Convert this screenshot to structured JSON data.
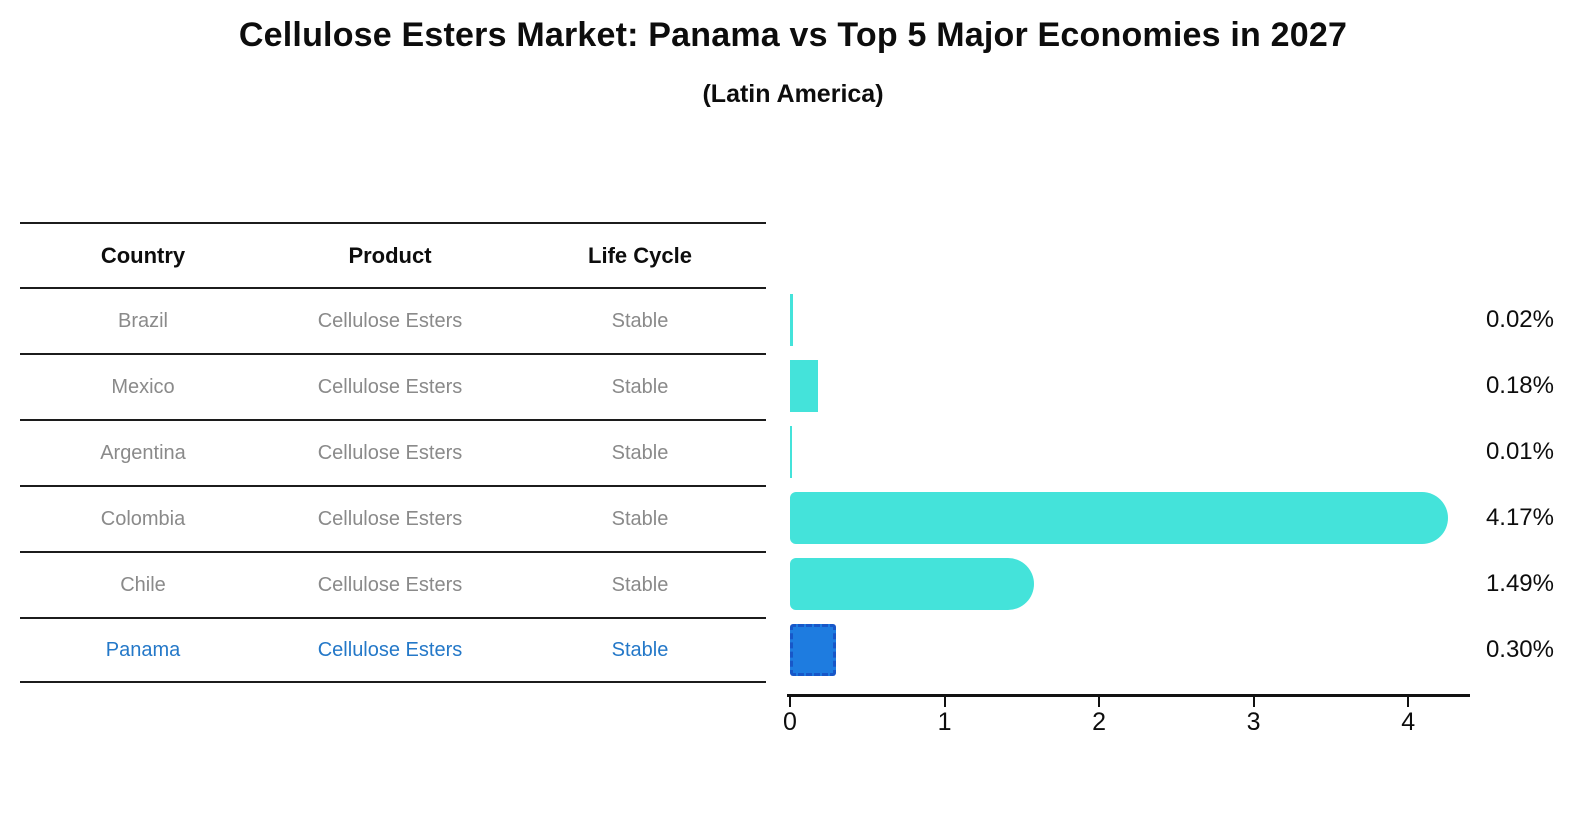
{
  "header": {
    "title": "Cellulose Esters Market: Panama vs Top 5 Major Economies in 2027",
    "subtitle": "(Latin America)"
  },
  "table": {
    "headers": [
      "Country",
      "Product",
      "Life Cycle"
    ],
    "rows": [
      {
        "country": "Brazil",
        "product": "Cellulose Esters",
        "life_cycle": "Stable",
        "highlight": false
      },
      {
        "country": "Mexico",
        "product": "Cellulose Esters",
        "life_cycle": "Stable",
        "highlight": false
      },
      {
        "country": "Argentina",
        "product": "Cellulose Esters",
        "life_cycle": "Stable",
        "highlight": false
      },
      {
        "country": "Colombia",
        "product": "Cellulose Esters",
        "life_cycle": "Stable",
        "highlight": false
      },
      {
        "country": "Chile",
        "product": "Cellulose Esters",
        "life_cycle": "Stable",
        "highlight": false
      },
      {
        "country": "Panama",
        "product": "Cellulose Esters",
        "life_cycle": "Stable",
        "highlight": true
      }
    ]
  },
  "chart_data": {
    "type": "bar",
    "orientation": "horizontal",
    "title": "Cellulose Esters Market: Panama vs Top 5 Major Economies in 2027",
    "subtitle": "(Latin America)",
    "categories": [
      "Brazil",
      "Mexico",
      "Argentina",
      "Colombia",
      "Chile",
      "Panama"
    ],
    "values": [
      0.02,
      0.18,
      0.01,
      4.17,
      1.49,
      0.3
    ],
    "value_labels": [
      "0.02%",
      "0.18%",
      "0.01%",
      "4.17%",
      "1.49%",
      "0.30%"
    ],
    "xlabel": "",
    "ylabel": "",
    "xlim": [
      0,
      4.4
    ],
    "xticks": [
      0,
      1,
      2,
      3,
      4
    ],
    "grid": false,
    "legend": false,
    "colors": {
      "bar": "#44e3da",
      "highlight_bar": "#1e7ce0",
      "highlight_border": "#1857c8",
      "highlight_text": "#2478c8",
      "row_text": "#8a8a8a",
      "axis": "#111111"
    }
  }
}
